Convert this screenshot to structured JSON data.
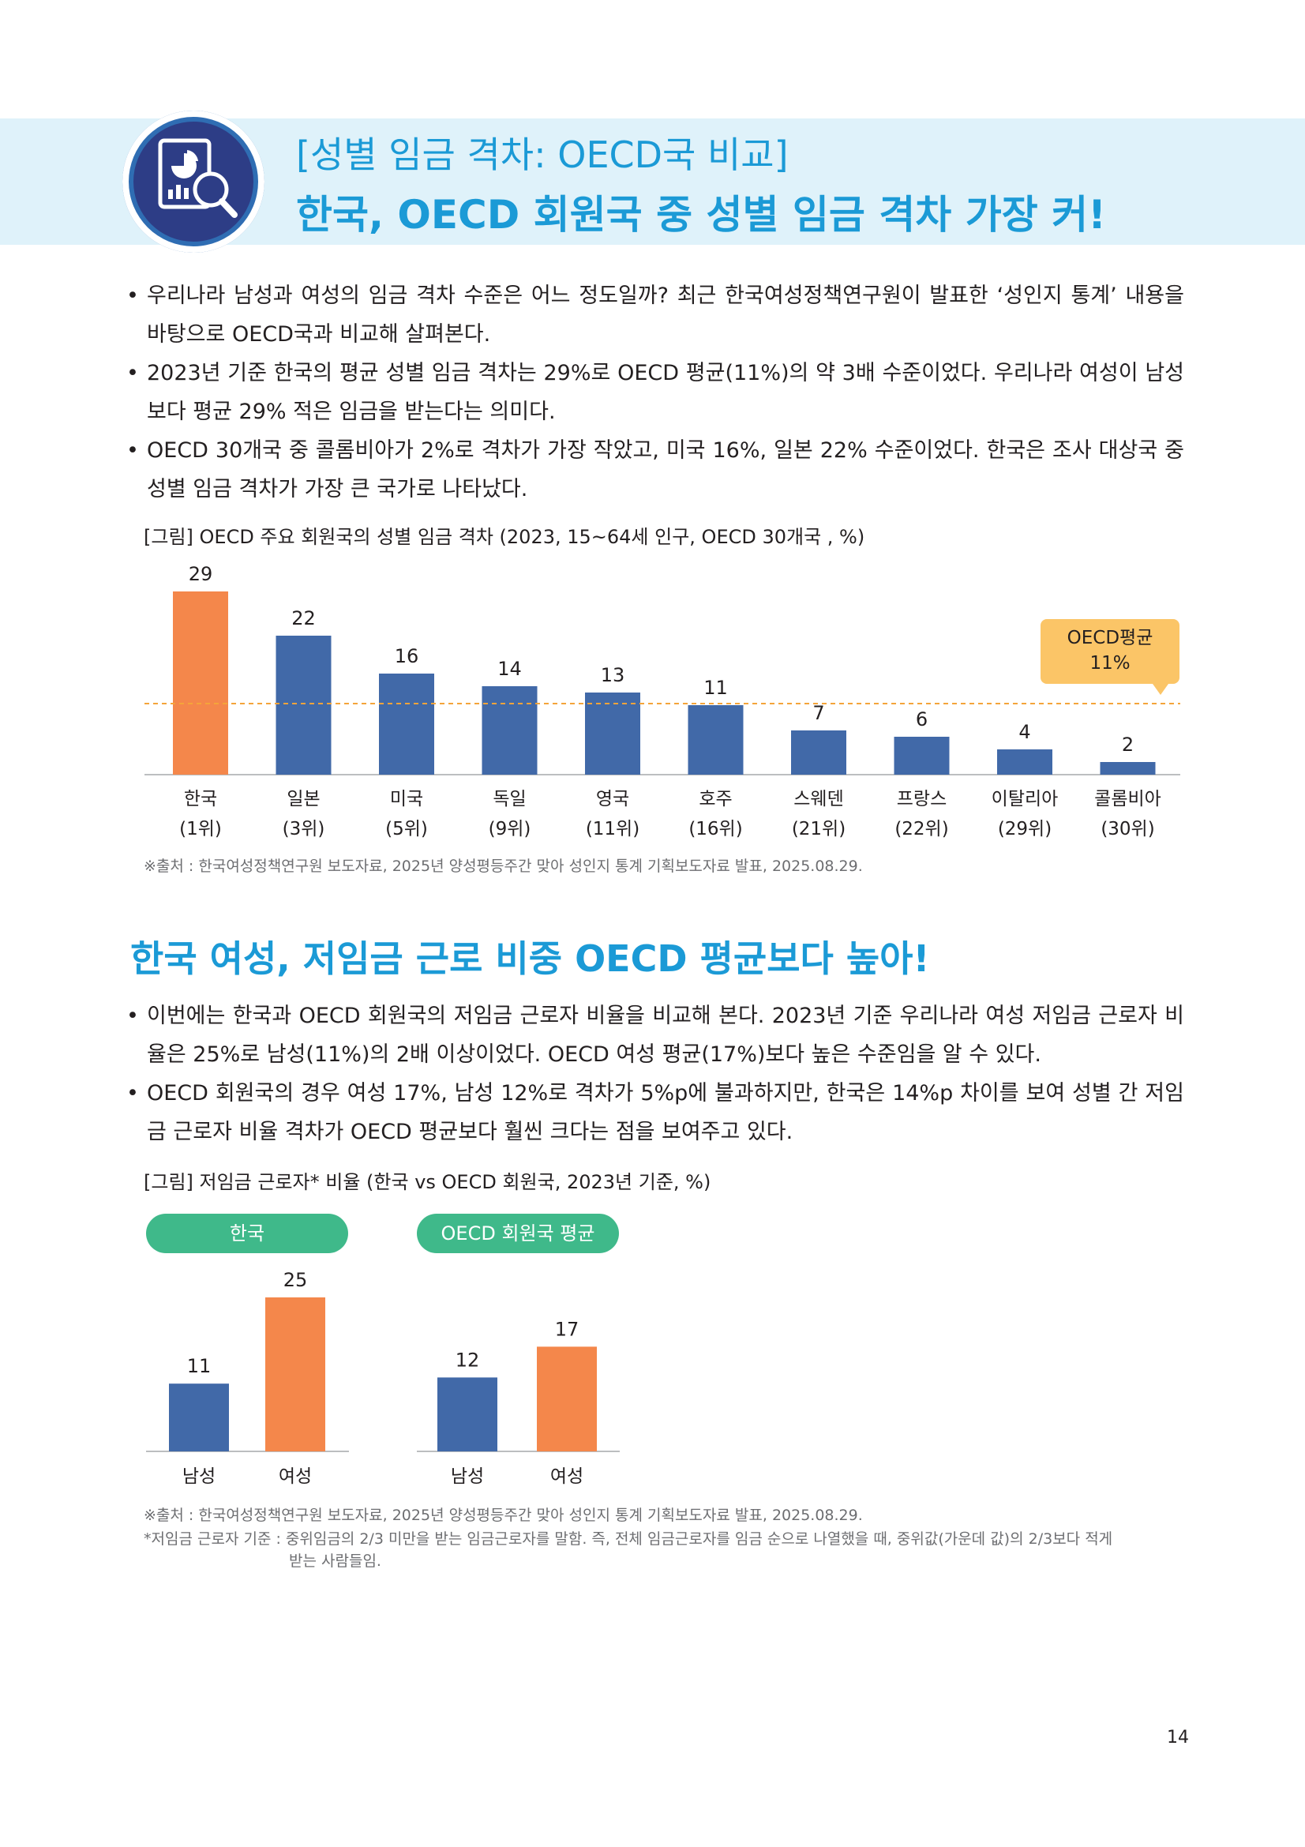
{
  "header": {
    "subtitle": "[성별 임금 격차: OECD국 비교]",
    "title": "한국, OECD 회원국 중 성별 임금 격차 가장 커!"
  },
  "section1": {
    "bullets": [
      "우리나라 남성과 여성의 임금 격차 수준은 어느 정도일까? 최근 한국여성정책연구원이 발표한 ‘성인지 통계’ 내용을 바탕으로 OECD국과 비교해 살펴본다.",
      "2023년 기준 한국의 평균 성별 임금 격차는 29%로 OECD 평균(11%)의 약 3배 수준이었다. 우리나라 여성이 남성보다 평균 29% 적은 임금을 받는다는 의미다.",
      "OECD 30개국 중 콜롬비아가 2%로 격차가 가장 작았고, 미국 16%, 일본 22% 수준이었다. 한국은 조사 대상국 중 성별 임금 격차가 가장 큰 국가로 나타났다."
    ],
    "figure_caption": "[그림] OECD 주요 회원국의 성별 임금 격차 (2023, 15~64세 인구, OECD 30개국 , %)",
    "oecd_avg_label": "OECD평균",
    "oecd_avg_value": "11%",
    "source": "※출처 : 한국여성정책연구원 보도자료, 2025년 양성평등주간 맞아 성인지 통계 기획보도자료 발표, 2025.08.29."
  },
  "section2": {
    "title": "한국 여성, 저임금 근로 비중 OECD 평균보다 높아!",
    "bullets": [
      "이번에는 한국과 OECD 회원국의 저임금 근로자 비율을 비교해 본다. 2023년 기준 우리나라 여성 저임금 근로자 비율은 25%로 남성(11%)의 2배 이상이었다. OECD 여성 평균(17%)보다 높은 수준임을 알 수 있다.",
      "OECD 회원국의 경우 여성 17%, 남성 12%로 격차가 5%p에 불과하지만, 한국은 14%p 차이를 보여 성별 간 저임금 근로자 비율 격차가 OECD 평균보다 훨씬 크다는 점을 보여주고 있다."
    ],
    "figure_caption": "[그림] 저임금 근로자* 비율 (한국 vs OECD 회원국, 2023년 기준, %)",
    "pill_korea": "한국",
    "pill_oecd": "OECD 회원국 평균",
    "source": "※출처 : 한국여성정책연구원 보도자료, 2025년 양성평등주간 맞아 성인지 통계 기획보도자료 발표, 2025.08.29.",
    "footnote_line1": "*저임금 근로자 기준 : 중위임금의 2/3 미만을 받는 임금근로자를 말함. 즉, 전체 임금근로자를 임금 순으로 나열했을 때, 중위값(가운데 값)의 2/3보다 적게",
    "footnote_line2": "받는 사람들임."
  },
  "page_number": "14",
  "colors": {
    "accent": "#1b9ad6",
    "bar_blue": "#4169a8",
    "bar_orange": "#f4874b",
    "avg_line": "#f4a43a",
    "pill_green": "#3fb98a",
    "callout": "#fbc567"
  },
  "chart_data": [
    {
      "type": "bar",
      "categories": [
        "한국",
        "일본",
        "미국",
        "독일",
        "영국",
        "호주",
        "스웨덴",
        "프랑스",
        "이탈리아",
        "콜롬비아"
      ],
      "ranks": [
        "(1위)",
        "(3위)",
        "(5위)",
        "(9위)",
        "(11위)",
        "(16위)",
        "(21위)",
        "(22위)",
        "(29위)",
        "(30위)"
      ],
      "values": [
        29,
        22,
        16,
        14,
        13,
        11,
        7,
        6,
        4,
        2
      ],
      "highlight_index": 0,
      "reference_line": 11,
      "ylim": [
        0,
        30
      ]
    },
    {
      "type": "bar",
      "groups": [
        {
          "categories": [
            "남성",
            "여성"
          ],
          "values": [
            11,
            25
          ]
        },
        {
          "categories": [
            "남성",
            "여성"
          ],
          "values": [
            12,
            17
          ]
        }
      ],
      "ylim": [
        0,
        25
      ]
    }
  ]
}
